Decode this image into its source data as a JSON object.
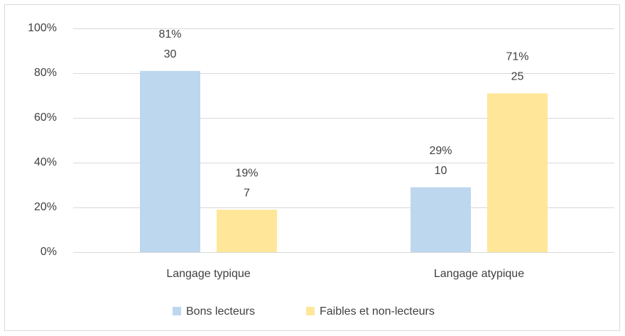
{
  "chart_data": {
    "type": "bar",
    "categories": [
      "Langage typique",
      "Langage atypique"
    ],
    "series": [
      {
        "name": "Bons lecteurs",
        "color": "#bdd7ee",
        "values": [
          81,
          29
        ],
        "value_labels": [
          "81%",
          "29%"
        ],
        "counts": [
          30,
          10
        ]
      },
      {
        "name": "Faibles et non-lecteurs",
        "color": "#ffe699",
        "values": [
          19,
          71
        ],
        "value_labels": [
          "19%",
          "71%"
        ],
        "counts": [
          7,
          25
        ]
      }
    ],
    "ylim": [
      0,
      100
    ],
    "yticks": [
      {
        "value": 0,
        "label": "0%"
      },
      {
        "value": 20,
        "label": "20%"
      },
      {
        "value": 40,
        "label": "40%"
      },
      {
        "value": 60,
        "label": "60%"
      },
      {
        "value": 80,
        "label": "80%"
      },
      {
        "value": 100,
        "label": "100%"
      }
    ],
    "grid": true,
    "legend": "bottom"
  }
}
